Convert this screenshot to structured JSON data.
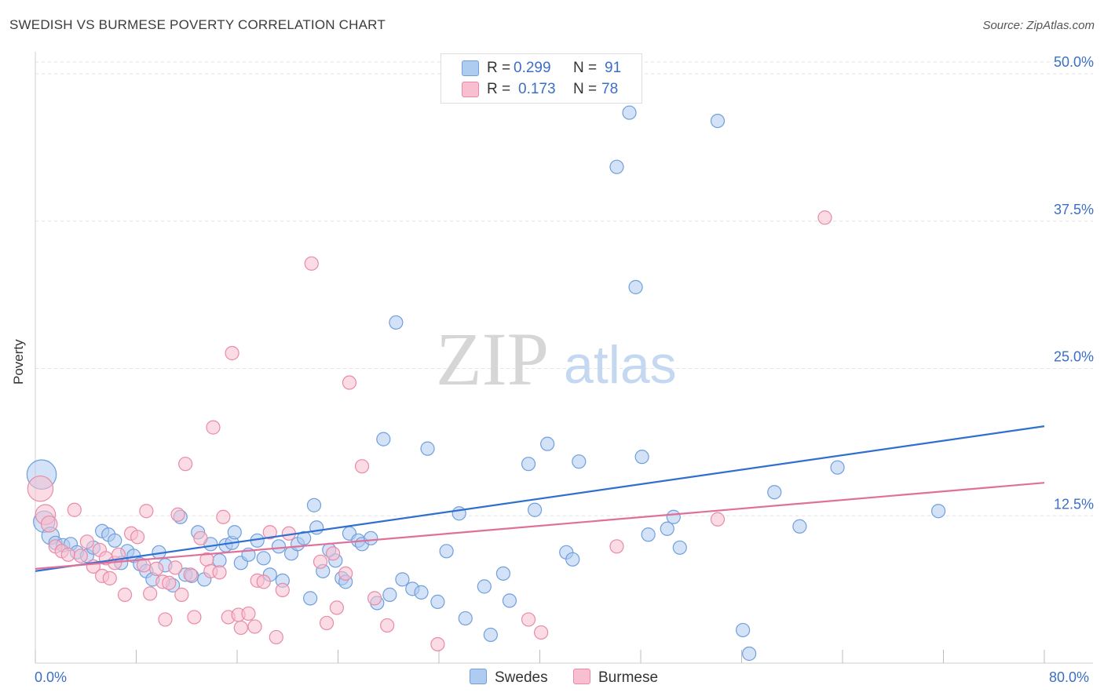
{
  "title": "SWEDISH VS BURMESE POVERTY CORRELATION CHART",
  "source": "Source: ZipAtlas.com",
  "watermark": {
    "zip": "ZIP",
    "atlas": "atlas"
  },
  "legend": {
    "rows": [
      {
        "r_label": "R =",
        "r_value": "0.299",
        "n_label": "N =",
        "n_value": "91"
      },
      {
        "r_label": "R =",
        "r_value": "0.173",
        "n_label": "N =",
        "n_value": "78"
      }
    ]
  },
  "bottom_legend": [
    "Swedes",
    "Burmese"
  ],
  "x_axis_labels": {
    "min": "0.0%",
    "max": "80.0%"
  },
  "colors": {
    "swedes_fill": "#aecbf0",
    "swedes_stroke": "#6f9fdc",
    "swedes_line": "#2f6fd0",
    "burmese_fill": "#f7bfd0",
    "burmese_stroke": "#e98aa8",
    "burmese_line": "#e0709a",
    "tick_text": "#3b6fc7"
  },
  "chart_data": {
    "type": "scatter",
    "title": "SWEDISH VS BURMESE POVERTY CORRELATION CHART",
    "xlabel": "",
    "ylabel": "Poverty",
    "xlim": [
      0,
      80
    ],
    "ylim": [
      0,
      50
    ],
    "yticks": [
      12.5,
      25.0,
      37.5,
      50.0
    ],
    "ytick_labels": [
      "12.5%",
      "25.0%",
      "37.5%",
      "50.0%"
    ],
    "grid": true,
    "series": [
      {
        "name": "Swedes",
        "r": 0.299,
        "n": 91,
        "trend": {
          "x": [
            0,
            80
          ],
          "y": [
            7.8,
            20.1
          ]
        },
        "points": [
          [
            0.5,
            16.0,
            2.2
          ],
          [
            0.7,
            12.0,
            1.6
          ],
          [
            1.2,
            10.8,
            1.3
          ],
          [
            1.6,
            10.2,
            1
          ],
          [
            2.2,
            10.0,
            1
          ],
          [
            2.8,
            10.1,
            1
          ],
          [
            3.3,
            9.4,
            1
          ],
          [
            4.1,
            9.1,
            1
          ],
          [
            4.6,
            9.8,
            1
          ],
          [
            5.3,
            11.2,
            1
          ],
          [
            5.8,
            10.9,
            1
          ],
          [
            6.3,
            10.4,
            1
          ],
          [
            6.8,
            8.5,
            1
          ],
          [
            7.3,
            9.5,
            1
          ],
          [
            7.8,
            9.1,
            1
          ],
          [
            8.3,
            8.4,
            1
          ],
          [
            8.8,
            7.8,
            1
          ],
          [
            9.3,
            7.1,
            1
          ],
          [
            9.8,
            9.4,
            1
          ],
          [
            10.3,
            8.3,
            1
          ],
          [
            10.9,
            6.6,
            1
          ],
          [
            11.5,
            12.4,
            1
          ],
          [
            11.9,
            7.5,
            1
          ],
          [
            12.4,
            7.4,
            1
          ],
          [
            12.9,
            11.1,
            1
          ],
          [
            13.4,
            7.1,
            1
          ],
          [
            13.9,
            10.1,
            1
          ],
          [
            14.6,
            8.7,
            1
          ],
          [
            15.1,
            10.0,
            1
          ],
          [
            15.6,
            10.2,
            1
          ],
          [
            15.8,
            11.1,
            1
          ],
          [
            16.3,
            8.5,
            1
          ],
          [
            16.9,
            9.2,
            1
          ],
          [
            17.6,
            10.4,
            1
          ],
          [
            18.1,
            8.9,
            1
          ],
          [
            18.6,
            7.5,
            1
          ],
          [
            19.3,
            9.9,
            1
          ],
          [
            19.6,
            7.0,
            1
          ],
          [
            20.3,
            9.3,
            1
          ],
          [
            20.8,
            10.1,
            1
          ],
          [
            21.3,
            10.6,
            1
          ],
          [
            21.8,
            5.5,
            1
          ],
          [
            22.1,
            13.4,
            1
          ],
          [
            22.3,
            11.5,
            1
          ],
          [
            22.8,
            7.8,
            1
          ],
          [
            23.3,
            9.6,
            1
          ],
          [
            23.8,
            8.7,
            1
          ],
          [
            24.3,
            7.2,
            1
          ],
          [
            24.6,
            6.9,
            1
          ],
          [
            24.9,
            11.0,
            1
          ],
          [
            25.6,
            10.4,
            1
          ],
          [
            25.9,
            10.1,
            1
          ],
          [
            26.6,
            10.6,
            1
          ],
          [
            27.1,
            5.1,
            1
          ],
          [
            27.6,
            19.0,
            1
          ],
          [
            28.1,
            5.8,
            1
          ],
          [
            28.6,
            28.9,
            1
          ],
          [
            29.1,
            7.1,
            1
          ],
          [
            29.9,
            6.3,
            1
          ],
          [
            30.6,
            6.0,
            1
          ],
          [
            31.1,
            18.2,
            1
          ],
          [
            31.9,
            5.2,
            1
          ],
          [
            32.6,
            9.5,
            1
          ],
          [
            33.6,
            12.7,
            1
          ],
          [
            34.1,
            3.8,
            1
          ],
          [
            35.6,
            6.5,
            1
          ],
          [
            36.1,
            2.4,
            1
          ],
          [
            37.1,
            7.6,
            1
          ],
          [
            37.6,
            5.3,
            1
          ],
          [
            39.1,
            16.9,
            1
          ],
          [
            39.6,
            13.0,
            1
          ],
          [
            40.6,
            18.6,
            1
          ],
          [
            42.1,
            9.4,
            1
          ],
          [
            42.6,
            8.8,
            1
          ],
          [
            43.1,
            17.1,
            1
          ],
          [
            46.1,
            42.1,
            1
          ],
          [
            47.1,
            46.7,
            1
          ],
          [
            47.6,
            31.9,
            1
          ],
          [
            48.1,
            17.5,
            1
          ],
          [
            48.6,
            10.9,
            1
          ],
          [
            50.1,
            11.4,
            1
          ],
          [
            50.6,
            12.4,
            1
          ],
          [
            51.1,
            9.8,
            1
          ],
          [
            54.1,
            46.0,
            1
          ],
          [
            56.1,
            2.8,
            1
          ],
          [
            56.6,
            0.8,
            1
          ],
          [
            58.6,
            14.5,
            1
          ],
          [
            60.6,
            11.6,
            1
          ],
          [
            63.6,
            16.6,
            1
          ],
          [
            71.6,
            12.9,
            1
          ]
        ]
      },
      {
        "name": "Burmese",
        "r": 0.173,
        "n": 78,
        "trend": {
          "x": [
            0,
            80
          ],
          "y": [
            8.0,
            15.3
          ]
        },
        "points": [
          [
            0.4,
            14.8,
            1.9
          ],
          [
            0.8,
            12.6,
            1.5
          ],
          [
            1.1,
            11.8,
            1.2
          ],
          [
            1.6,
            9.9,
            1
          ],
          [
            2.1,
            9.5,
            1
          ],
          [
            2.6,
            9.2,
            1
          ],
          [
            3.1,
            13.0,
            1
          ],
          [
            3.6,
            9.1,
            1
          ],
          [
            4.1,
            10.3,
            1
          ],
          [
            4.6,
            8.2,
            1
          ],
          [
            5.1,
            9.6,
            1
          ],
          [
            5.3,
            7.4,
            1
          ],
          [
            5.6,
            8.9,
            1
          ],
          [
            5.9,
            7.2,
            1
          ],
          [
            6.3,
            8.5,
            1
          ],
          [
            6.6,
            9.2,
            1
          ],
          [
            7.1,
            5.8,
            1
          ],
          [
            7.6,
            11.0,
            1
          ],
          [
            8.1,
            10.7,
            1
          ],
          [
            8.6,
            8.3,
            1
          ],
          [
            8.8,
            12.9,
            1
          ],
          [
            9.1,
            5.9,
            1
          ],
          [
            9.6,
            8.0,
            1
          ],
          [
            10.1,
            6.9,
            1
          ],
          [
            10.3,
            3.7,
            1
          ],
          [
            10.6,
            6.8,
            1
          ],
          [
            11.1,
            8.1,
            1
          ],
          [
            11.3,
            12.6,
            1
          ],
          [
            11.6,
            5.8,
            1
          ],
          [
            11.9,
            16.9,
            1
          ],
          [
            12.3,
            7.5,
            1
          ],
          [
            12.6,
            3.9,
            1
          ],
          [
            13.1,
            10.6,
            1
          ],
          [
            13.6,
            8.8,
            1
          ],
          [
            13.9,
            7.8,
            1
          ],
          [
            14.1,
            20.0,
            1
          ],
          [
            14.6,
            7.7,
            1
          ],
          [
            14.9,
            12.4,
            1
          ],
          [
            15.3,
            3.9,
            1
          ],
          [
            15.6,
            26.3,
            1
          ],
          [
            16.1,
            4.1,
            1
          ],
          [
            16.3,
            3.0,
            1
          ],
          [
            16.9,
            4.2,
            1
          ],
          [
            17.4,
            3.1,
            1
          ],
          [
            17.6,
            7.0,
            1
          ],
          [
            18.1,
            6.9,
            1
          ],
          [
            18.6,
            11.1,
            1
          ],
          [
            19.1,
            2.2,
            1
          ],
          [
            19.6,
            6.2,
            1
          ],
          [
            20.1,
            11.0,
            1
          ],
          [
            21.9,
            33.9,
            1
          ],
          [
            22.6,
            8.6,
            1
          ],
          [
            23.1,
            3.4,
            1
          ],
          [
            23.6,
            9.3,
            1
          ],
          [
            23.9,
            4.7,
            1
          ],
          [
            24.6,
            7.6,
            1
          ],
          [
            24.9,
            23.8,
            1
          ],
          [
            25.9,
            16.7,
            1
          ],
          [
            26.9,
            5.5,
            1
          ],
          [
            27.9,
            3.2,
            1
          ],
          [
            31.9,
            1.6,
            1
          ],
          [
            39.1,
            3.7,
            1
          ],
          [
            40.1,
            2.6,
            1
          ],
          [
            46.1,
            9.9,
            1
          ],
          [
            54.1,
            12.2,
            1
          ],
          [
            62.6,
            37.8,
            1
          ]
        ]
      }
    ]
  }
}
